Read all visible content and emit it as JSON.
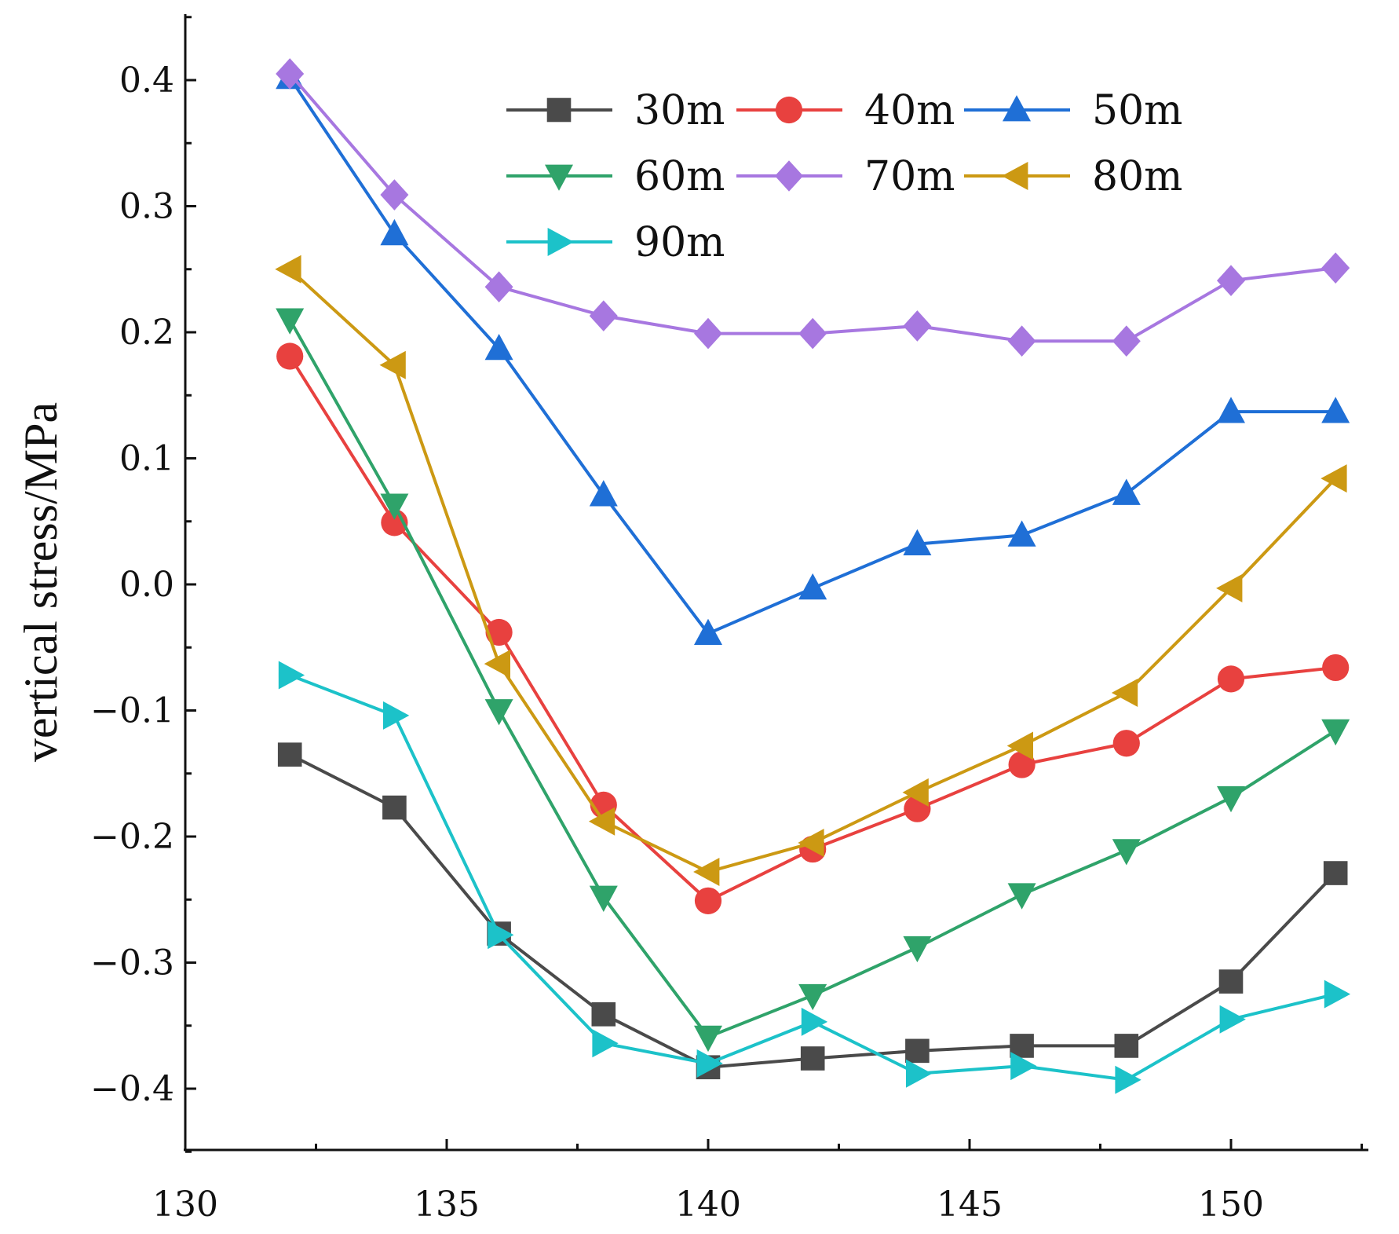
{
  "chart_data": {
    "type": "line",
    "title": "",
    "xlabel": "",
    "ylabel": "vertical stress/MPa",
    "xlim": [
      130,
      152.5
    ],
    "ylim": [
      -0.45,
      0.45
    ],
    "xticks": [
      130,
      135,
      140,
      145,
      150
    ],
    "xtick_labels": [
      "130",
      "135",
      "140",
      "145",
      "150"
    ],
    "yticks": [
      0.4,
      0.3,
      0.2,
      0.1,
      0.0,
      -0.1,
      -0.2,
      -0.3,
      -0.4
    ],
    "ytick_labels": [
      "0.4",
      "0.3",
      "0.2",
      "0.1",
      "0.0",
      "−0.1",
      "−0.2",
      "−0.3",
      "−0.4"
    ],
    "grid": false,
    "legend_position": "top-center",
    "x": [
      132,
      134,
      136,
      138,
      140,
      142,
      144,
      146,
      148,
      150,
      152
    ],
    "series": [
      {
        "name": "30m",
        "color": "#4a4a4a",
        "marker": "square",
        "values": [
          -0.135,
          -0.177,
          -0.277,
          -0.341,
          -0.383,
          -0.376,
          -0.37,
          -0.366,
          -0.366,
          -0.315,
          -0.229
        ]
      },
      {
        "name": "40m",
        "color": "#e8413f",
        "marker": "circle",
        "values": [
          0.181,
          0.049,
          -0.038,
          -0.175,
          -0.251,
          -0.21,
          -0.178,
          -0.143,
          -0.126,
          -0.075,
          -0.066
        ]
      },
      {
        "name": "50m",
        "color": "#1f6fd6",
        "marker": "triangle-up",
        "values": [
          0.402,
          0.278,
          0.187,
          0.071,
          -0.039,
          -0.003,
          0.032,
          0.039,
          0.072,
          0.137,
          0.137
        ]
      },
      {
        "name": "60m",
        "color": "#2fa36a",
        "marker": "triangle-down",
        "values": [
          0.21,
          0.063,
          -0.1,
          -0.248,
          -0.359,
          -0.326,
          -0.288,
          -0.246,
          -0.211,
          -0.169,
          -0.116
        ]
      },
      {
        "name": "70m",
        "color": "#a777e0",
        "marker": "diamond",
        "values": [
          0.405,
          0.309,
          0.236,
          0.213,
          0.199,
          0.199,
          0.205,
          0.193,
          0.193,
          0.241,
          0.251
        ]
      },
      {
        "name": "80m",
        "color": "#cc9913",
        "marker": "triangle-left",
        "values": [
          0.25,
          0.174,
          -0.063,
          -0.188,
          -0.228,
          -0.205,
          -0.165,
          -0.128,
          -0.086,
          -0.003,
          0.084
        ]
      },
      {
        "name": "90m",
        "color": "#1cc2c9",
        "marker": "triangle-right",
        "values": [
          -0.072,
          -0.104,
          -0.278,
          -0.364,
          -0.38,
          -0.347,
          -0.388,
          -0.382,
          -0.393,
          -0.345,
          -0.325
        ]
      }
    ]
  }
}
